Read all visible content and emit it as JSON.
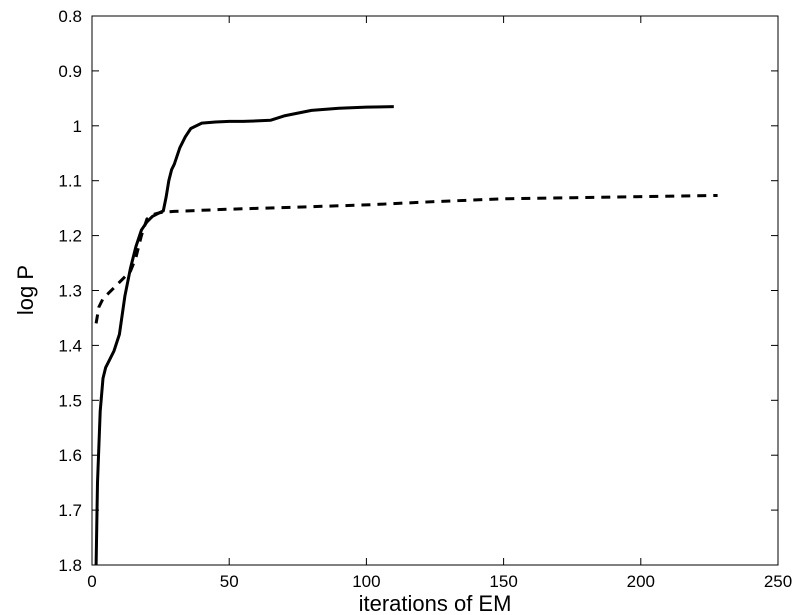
{
  "chart_data": {
    "type": "line",
    "xlabel": "iterations of EM",
    "ylabel": "log P",
    "xlim": [
      0,
      250
    ],
    "ylim": [
      0.8,
      1.8
    ],
    "y_inverted": true,
    "x_ticks": [
      0,
      50,
      100,
      150,
      200,
      250
    ],
    "x_tick_labels": [
      "0",
      "50",
      "100",
      "150",
      "200",
      "250"
    ],
    "y_ticks": [
      0.8,
      0.9,
      1.0,
      1.1,
      1.2,
      1.3,
      1.4,
      1.5,
      1.6,
      1.7,
      1.8
    ],
    "y_tick_labels": [
      "0.8",
      "0.9",
      "1",
      "1.1",
      "1.2",
      "1.3",
      "1.4",
      "1.5",
      "1.6",
      "1.7",
      "1.8"
    ],
    "grid": false,
    "legend": "none",
    "series": [
      {
        "style": "solid",
        "color": "#000000",
        "x": [
          1.5,
          2,
          3,
          4,
          5,
          6,
          8,
          10,
          12,
          14,
          16,
          18,
          20,
          22,
          24,
          26,
          27,
          28,
          29,
          30,
          32,
          34,
          36,
          40,
          45,
          50,
          55,
          60,
          65,
          70,
          80,
          90,
          100,
          110
        ],
        "y": [
          1.8,
          1.65,
          1.52,
          1.46,
          1.44,
          1.43,
          1.41,
          1.38,
          1.31,
          1.26,
          1.22,
          1.19,
          1.175,
          1.165,
          1.16,
          1.155,
          1.13,
          1.1,
          1.08,
          1.07,
          1.04,
          1.02,
          1.005,
          0.995,
          0.993,
          0.992,
          0.992,
          0.991,
          0.99,
          0.982,
          0.972,
          0.968,
          0.966,
          0.965
        ]
      },
      {
        "style": "dashed",
        "color": "#000000",
        "x": [
          1.5,
          2.5,
          4,
          6,
          8,
          10,
          12,
          14,
          16,
          18,
          20,
          22,
          25,
          30,
          50,
          75,
          100,
          125,
          150,
          175,
          200,
          228
        ],
        "y": [
          1.36,
          1.33,
          1.315,
          1.305,
          1.295,
          1.285,
          1.275,
          1.265,
          1.24,
          1.2,
          1.17,
          1.162,
          1.158,
          1.156,
          1.152,
          1.148,
          1.144,
          1.138,
          1.133,
          1.131,
          1.129,
          1.127
        ]
      }
    ]
  }
}
